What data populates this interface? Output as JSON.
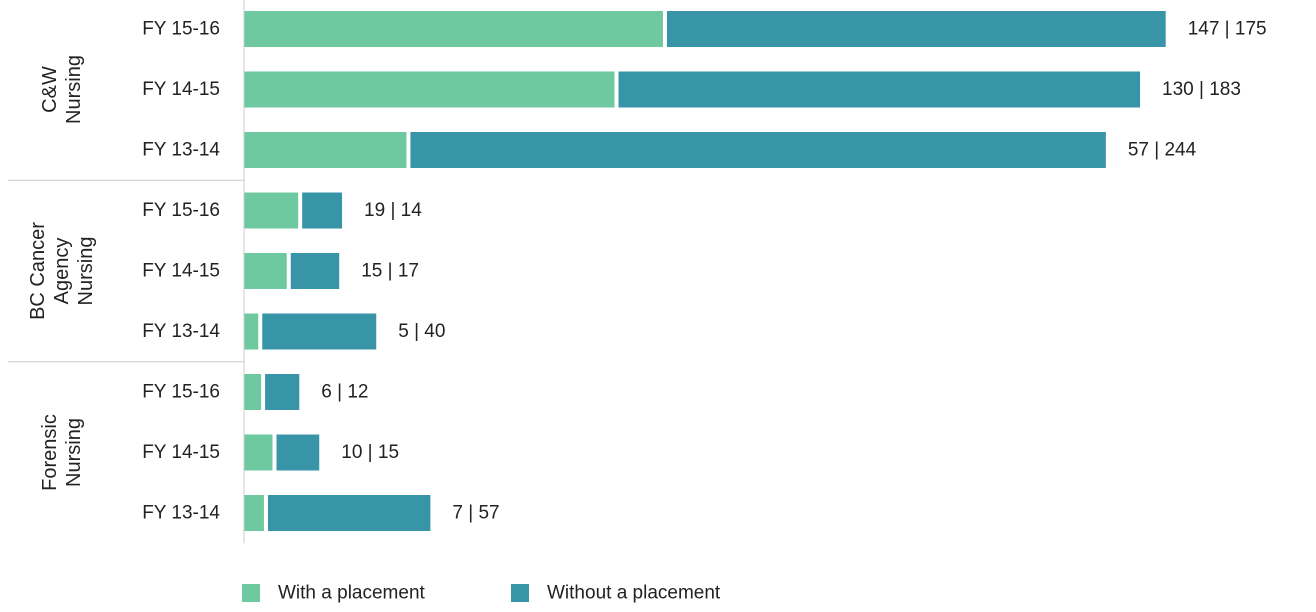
{
  "chart_data": {
    "type": "bar",
    "orientation": "horizontal",
    "stacked": true,
    "groups": [
      {
        "label_lines": [
          "C&W",
          "Nursing"
        ],
        "rows": [
          {
            "category": "FY 15-16",
            "with": 147,
            "without": 175,
            "label": "147  |  175"
          },
          {
            "category": "FY 14-15",
            "with": 130,
            "without": 183,
            "label": "130  |  183"
          },
          {
            "category": "FY 13-14",
            "with": 57,
            "without": 244,
            "label": "57  |  244"
          }
        ]
      },
      {
        "label_lines": [
          "BC Cancer",
          "Agency",
          "Nursing"
        ],
        "rows": [
          {
            "category": "FY 15-16",
            "with": 19,
            "without": 14,
            "label": "19  |  14"
          },
          {
            "category": "FY 14-15",
            "with": 15,
            "without": 17,
            "label": "15  |  17"
          },
          {
            "category": "FY 13-14",
            "with": 5,
            "without": 40,
            "label": "5  |  40"
          }
        ]
      },
      {
        "label_lines": [
          "Forensic",
          "Nursing"
        ],
        "rows": [
          {
            "category": "FY 15-16",
            "with": 6,
            "without": 12,
            "label": "6  |  12"
          },
          {
            "category": "FY 14-15",
            "with": 10,
            "without": 15,
            "label": "10  |  15"
          },
          {
            "category": "FY 13-14",
            "with": 7,
            "without": 57,
            "label": "7  |  57"
          }
        ]
      }
    ],
    "series": [
      {
        "key": "with",
        "name": "With a placement",
        "color": "#6ec8a0"
      },
      {
        "key": "without",
        "name": "Without a placement",
        "color": "#3895a8"
      }
    ],
    "legend_position": "bottom",
    "grid": false,
    "xlim": [
      0,
      325
    ]
  }
}
